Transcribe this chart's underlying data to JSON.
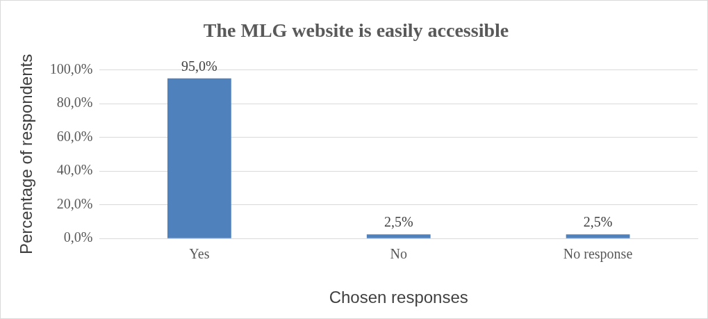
{
  "chart_data": {
    "type": "bar",
    "title": "The MLG website is easily accessible",
    "xlabel": "Chosen responses",
    "ylabel": "Percentage of respondents",
    "categories": [
      "Yes",
      "No",
      "No response"
    ],
    "values": [
      95,
      2.5,
      2.5
    ],
    "color": "#4f81bd",
    "value_labels": [
      "95,0%",
      "2,5%",
      "2,5%"
    ],
    "ylim": [
      0,
      100
    ],
    "yticks": [
      {
        "value": 0,
        "label": "0,0%"
      },
      {
        "value": 20,
        "label": "20,0%"
      },
      {
        "value": 40,
        "label": "40,0%"
      },
      {
        "value": 60,
        "label": "60,0%"
      },
      {
        "value": 80,
        "label": "80,0%"
      },
      {
        "value": 100,
        "label": "100,0%"
      }
    ],
    "grid": "y"
  }
}
